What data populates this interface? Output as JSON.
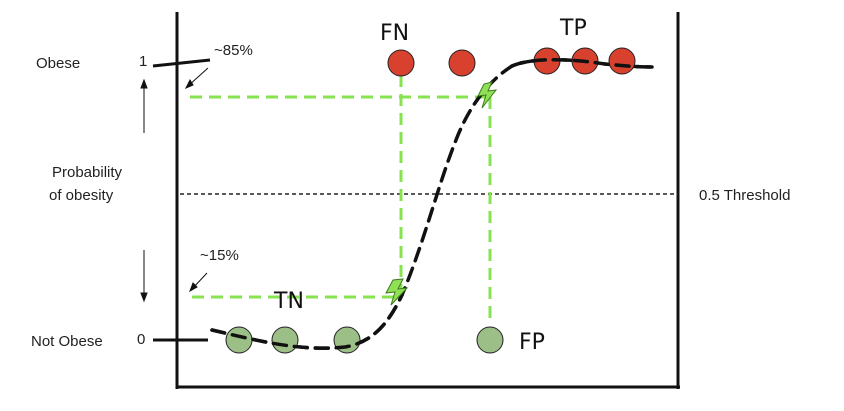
{
  "labels": {
    "obese": "Obese",
    "not_obese": "Not Obese",
    "one": "1",
    "zero": "0",
    "prob_line1": "Probability",
    "prob_line2": "of obesity",
    "pct_high": "~85%",
    "pct_low": "~15%",
    "threshold": "0.5 Threshold",
    "fn": "FN",
    "tp": "TP",
    "tn": "TN",
    "fp": "FP"
  },
  "colors": {
    "positive_fill": "#d9412f",
    "negative_fill": "#9cbf87",
    "guide_green": "#86e34f",
    "curve": "#111111",
    "axis": "#111111",
    "threshold_line": "#222222"
  },
  "icons": {
    "curve_marker": "lightning-bolt-icon"
  }
}
